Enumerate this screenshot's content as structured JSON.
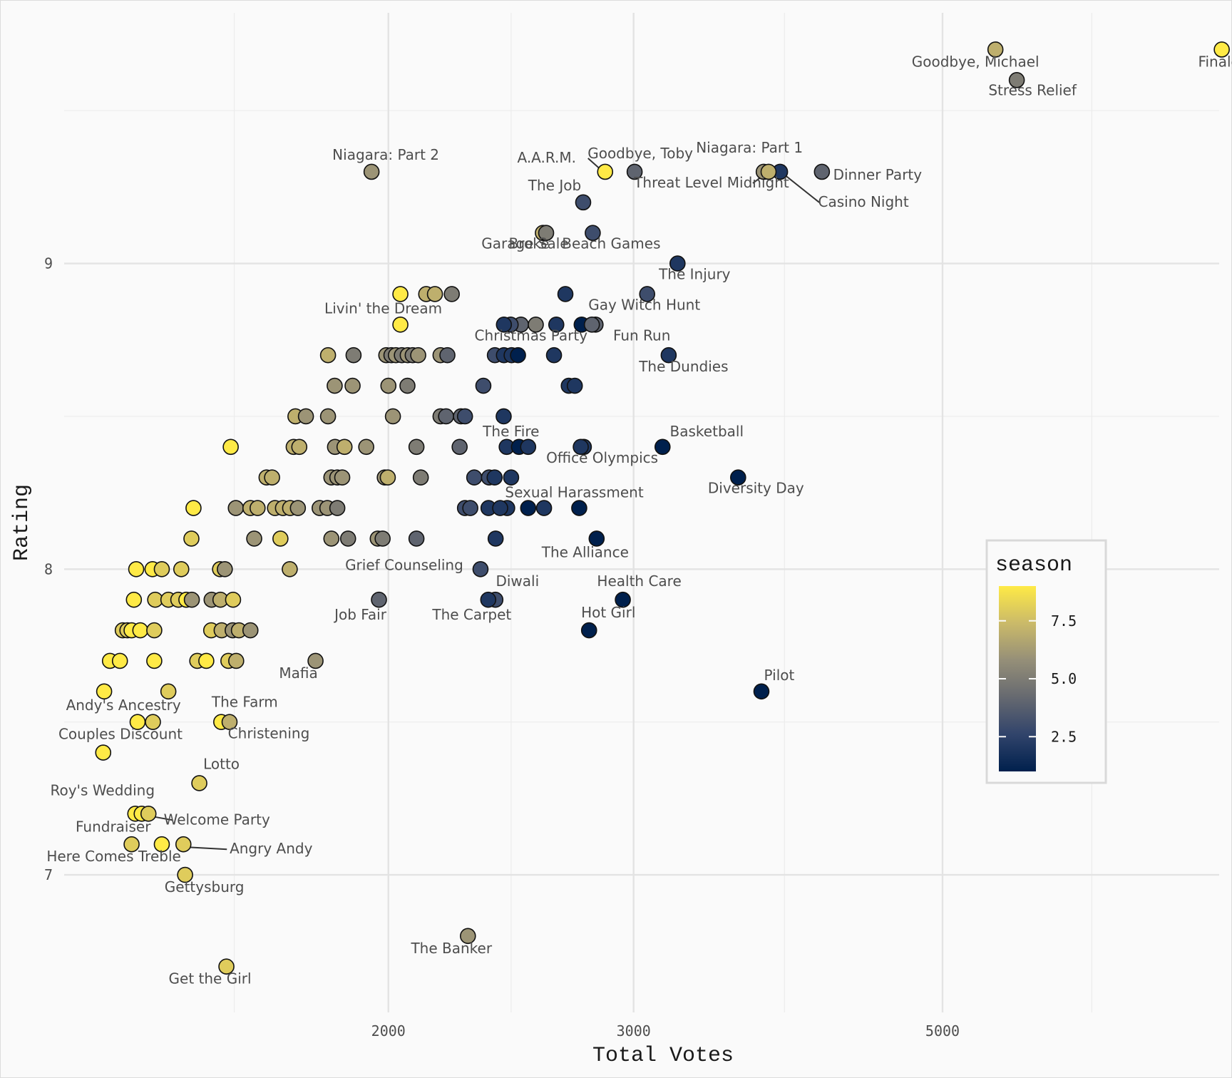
{
  "chart_data": {
    "type": "scatter",
    "title": "",
    "xlabel": "Total Votes",
    "ylabel": "Rating",
    "x_scale": "log",
    "xlim": [
      1170,
      7900
    ],
    "ylim": [
      6.55,
      9.82
    ],
    "x_ticks": [
      2000,
      3000,
      5000
    ],
    "x_tick_labels": [
      "2000",
      "3000",
      "5000"
    ],
    "y_ticks": [
      7,
      8,
      9
    ],
    "y_tick_labels": [
      "7",
      "8",
      "9"
    ],
    "grid": true,
    "legend": {
      "title": "season",
      "position": "right",
      "ticks": [
        2.5,
        5.0,
        7.5
      ],
      "tick_labels": [
        "2.5",
        "5.0",
        "7.5"
      ],
      "range": [
        1,
        9
      ]
    },
    "colors": {
      "low": "#00204d",
      "mid": "#7c7b78",
      "high": "#ffea46",
      "stops": [
        "#00204d",
        "#31446b",
        "#666970",
        "#958f78",
        "#cbba69",
        "#ffea46"
      ]
    },
    "labeled_points": [
      {
        "name": "Finale",
        "votes": 7934,
        "rating": 9.7,
        "season": 9
      },
      {
        "name": "Goodbye, Michael",
        "votes": 5457,
        "rating": 9.7,
        "season": 7
      },
      {
        "name": "Stress Relief",
        "votes": 5653,
        "rating": 9.6,
        "season": 5
      },
      {
        "name": "Dinner Party",
        "votes": 4096,
        "rating": 9.3,
        "season": 4
      },
      {
        "name": "Niagara: Part 1",
        "votes": 3720,
        "rating": 9.3,
        "season": 6
      },
      {
        "name": "Casino Night",
        "votes": 3822,
        "rating": 9.3,
        "season": 2
      },
      {
        "name": "Threat Level Midnight",
        "votes": 3750,
        "rating": 9.3,
        "season": 7
      },
      {
        "name": "Goodbye, Toby",
        "votes": 3005,
        "rating": 9.3,
        "season": 4
      },
      {
        "name": "A.A.R.M.",
        "votes": 2862,
        "rating": 9.3,
        "season": 9
      },
      {
        "name": "Niagara: Part 2",
        "votes": 1945,
        "rating": 9.3,
        "season": 6
      },
      {
        "name": "The Job",
        "votes": 2760,
        "rating": 9.2,
        "season": 3
      },
      {
        "name": "Garage Sale",
        "votes": 2582,
        "rating": 9.1,
        "season": 7
      },
      {
        "name": "Beach Games",
        "votes": 2804,
        "rating": 9.1,
        "season": 3
      },
      {
        "name": "Broke",
        "votes": 2596,
        "rating": 9.1,
        "season": 5
      },
      {
        "name": "The Injury",
        "votes": 3226,
        "rating": 9.0,
        "season": 2
      },
      {
        "name": "Gay Witch Hunt",
        "votes": 3068,
        "rating": 8.9,
        "season": 3
      },
      {
        "name": "Livin' the Dream",
        "votes": 2040,
        "rating": 8.8,
        "season": 9
      },
      {
        "name": "Christmas Party",
        "votes": 2421,
        "rating": 8.8,
        "season": 2
      },
      {
        "name": "Fun Run",
        "votes": 2800,
        "rating": 8.8,
        "season": 4
      },
      {
        "name": "The Dundies",
        "votes": 3179,
        "rating": 8.7,
        "season": 2
      },
      {
        "name": "Basketball",
        "votes": 3147,
        "rating": 8.4,
        "season": 1
      },
      {
        "name": "The Fire",
        "votes": 2520,
        "rating": 8.4,
        "season": 2
      },
      {
        "name": "Office Olympics",
        "votes": 2749,
        "rating": 8.4,
        "season": 2
      },
      {
        "name": "Diversity Day",
        "votes": 3566,
        "rating": 8.3,
        "season": 1
      },
      {
        "name": "Sexual Harassment",
        "votes": 2406,
        "rating": 8.2,
        "season": 2
      },
      {
        "name": "The Alliance",
        "votes": 2822,
        "rating": 8.1,
        "season": 1
      },
      {
        "name": "Grief Counseling",
        "votes": 2329,
        "rating": 8.0,
        "season": 3
      },
      {
        "name": "Diwali",
        "votes": 2387,
        "rating": 7.9,
        "season": 3
      },
      {
        "name": "Health Care",
        "votes": 2947,
        "rating": 7.9,
        "season": 1
      },
      {
        "name": "Job Fair",
        "votes": 1969,
        "rating": 7.9,
        "season": 4
      },
      {
        "name": "The Carpet",
        "votes": 2359,
        "rating": 7.9,
        "season": 2
      },
      {
        "name": "Hot Girl",
        "votes": 2787,
        "rating": 7.8,
        "season": 1
      },
      {
        "name": "Pilot",
        "votes": 3706,
        "rating": 7.6,
        "season": 1
      },
      {
        "name": "Mafia",
        "votes": 1773,
        "rating": 7.7,
        "season": 6
      },
      {
        "name": "Andy's Ancestry",
        "votes": 1390,
        "rating": 7.6,
        "season": 8
      },
      {
        "name": "The Farm",
        "votes": 1517,
        "rating": 7.5,
        "season": 9
      },
      {
        "name": "Christening",
        "votes": 1538,
        "rating": 7.5,
        "season": 7
      },
      {
        "name": "Couples Discount",
        "votes": 1321,
        "rating": 7.5,
        "season": 9
      },
      {
        "name": "Roy's Wedding",
        "votes": 1248,
        "rating": 7.4,
        "season": 9
      },
      {
        "name": "Lotto",
        "votes": 1463,
        "rating": 7.3,
        "season": 8
      },
      {
        "name": "Fundraiser",
        "votes": 1330,
        "rating": 7.2,
        "season": 9
      },
      {
        "name": "Welcome Party",
        "votes": 1345,
        "rating": 7.2,
        "season": 8
      },
      {
        "name": "Here Comes Treble",
        "votes": 1308,
        "rating": 7.1,
        "season": 8
      },
      {
        "name": "Angry Andy",
        "votes": 1425,
        "rating": 7.1,
        "season": 8
      },
      {
        "name": "Gettysburg",
        "votes": 1429,
        "rating": 7.0,
        "season": 8
      },
      {
        "name": "The Banker",
        "votes": 2281,
        "rating": 6.8,
        "season": 6
      },
      {
        "name": "Get the Girl",
        "votes": 1530,
        "rating": 6.7,
        "season": 8
      }
    ],
    "other_points": [
      {
        "votes": 2040,
        "rating": 8.9,
        "season": 9
      },
      {
        "votes": 2129,
        "rating": 8.9,
        "season": 7
      },
      {
        "votes": 2160,
        "rating": 8.9,
        "season": 7
      },
      {
        "votes": 2221,
        "rating": 8.9,
        "season": 5
      },
      {
        "votes": 2680,
        "rating": 8.9,
        "season": 2
      },
      {
        "votes": 2490,
        "rating": 8.8,
        "season": 4
      },
      {
        "votes": 2448,
        "rating": 8.8,
        "season": 3
      },
      {
        "votes": 2552,
        "rating": 8.8,
        "season": 5
      },
      {
        "votes": 2640,
        "rating": 8.8,
        "season": 2
      },
      {
        "votes": 2753,
        "rating": 8.8,
        "season": 1
      },
      {
        "votes": 2817,
        "rating": 8.8,
        "season": 4
      },
      {
        "votes": 1810,
        "rating": 8.7,
        "season": 7
      },
      {
        "votes": 1888,
        "rating": 8.7,
        "season": 5
      },
      {
        "votes": 1993,
        "rating": 8.7,
        "season": 6
      },
      {
        "votes": 2010,
        "rating": 8.7,
        "season": 5
      },
      {
        "votes": 2025,
        "rating": 8.7,
        "season": 6
      },
      {
        "votes": 2045,
        "rating": 8.7,
        "season": 5
      },
      {
        "votes": 2065,
        "rating": 8.7,
        "season": 6
      },
      {
        "votes": 2082,
        "rating": 8.7,
        "season": 5
      },
      {
        "votes": 2101,
        "rating": 8.7,
        "season": 6
      },
      {
        "votes": 2180,
        "rating": 8.7,
        "season": 6
      },
      {
        "votes": 2205,
        "rating": 8.7,
        "season": 4
      },
      {
        "votes": 2385,
        "rating": 8.7,
        "season": 3
      },
      {
        "votes": 2421,
        "rating": 8.7,
        "season": 2
      },
      {
        "votes": 2452,
        "rating": 8.7,
        "season": 2
      },
      {
        "votes": 2478,
        "rating": 8.7,
        "season": 1
      },
      {
        "votes": 2630,
        "rating": 8.7,
        "season": 2
      },
      {
        "votes": 1830,
        "rating": 8.6,
        "season": 6
      },
      {
        "votes": 1885,
        "rating": 8.6,
        "season": 6
      },
      {
        "votes": 2000,
        "rating": 8.6,
        "season": 6
      },
      {
        "votes": 2064,
        "rating": 8.6,
        "season": 5
      },
      {
        "votes": 2340,
        "rating": 8.6,
        "season": 3
      },
      {
        "votes": 2695,
        "rating": 8.6,
        "season": 2
      },
      {
        "votes": 2722,
        "rating": 8.6,
        "season": 2
      },
      {
        "votes": 1715,
        "rating": 8.5,
        "season": 7
      },
      {
        "votes": 1745,
        "rating": 8.5,
        "season": 6
      },
      {
        "votes": 1810,
        "rating": 8.5,
        "season": 6
      },
      {
        "votes": 2015,
        "rating": 8.5,
        "season": 6
      },
      {
        "votes": 2180,
        "rating": 8.5,
        "season": 5
      },
      {
        "votes": 2200,
        "rating": 8.5,
        "season": 4
      },
      {
        "votes": 2255,
        "rating": 8.5,
        "season": 4
      },
      {
        "votes": 2270,
        "rating": 8.5,
        "season": 3
      },
      {
        "votes": 2420,
        "rating": 8.5,
        "season": 2
      },
      {
        "votes": 1541,
        "rating": 8.4,
        "season": 9
      },
      {
        "votes": 1710,
        "rating": 8.4,
        "season": 7
      },
      {
        "votes": 1726,
        "rating": 8.4,
        "season": 7
      },
      {
        "votes": 1831,
        "rating": 8.4,
        "season": 6
      },
      {
        "votes": 1860,
        "rating": 8.4,
        "season": 7
      },
      {
        "votes": 1928,
        "rating": 8.4,
        "season": 6
      },
      {
        "votes": 2095,
        "rating": 8.4,
        "season": 5
      },
      {
        "votes": 2250,
        "rating": 8.4,
        "season": 4
      },
      {
        "votes": 2432,
        "rating": 8.4,
        "season": 2
      },
      {
        "votes": 2482,
        "rating": 8.4,
        "season": 1
      },
      {
        "votes": 2763,
        "rating": 8.4,
        "season": 2
      },
      {
        "votes": 1635,
        "rating": 8.3,
        "season": 7
      },
      {
        "votes": 1650,
        "rating": 8.3,
        "season": 7
      },
      {
        "votes": 1820,
        "rating": 8.3,
        "season": 6
      },
      {
        "votes": 1838,
        "rating": 8.3,
        "season": 6
      },
      {
        "votes": 1853,
        "rating": 8.3,
        "season": 6
      },
      {
        "votes": 1988,
        "rating": 8.3,
        "season": 6
      },
      {
        "votes": 1998,
        "rating": 8.3,
        "season": 7
      },
      {
        "votes": 2110,
        "rating": 8.3,
        "season": 5
      },
      {
        "votes": 2305,
        "rating": 8.3,
        "season": 3
      },
      {
        "votes": 2362,
        "rating": 8.3,
        "season": 3
      },
      {
        "votes": 2384,
        "rating": 8.3,
        "season": 2
      },
      {
        "votes": 2450,
        "rating": 8.3,
        "season": 2
      },
      {
        "votes": 1449,
        "rating": 8.2,
        "season": 9
      },
      {
        "votes": 1554,
        "rating": 8.2,
        "season": 6
      },
      {
        "votes": 1592,
        "rating": 8.2,
        "season": 7
      },
      {
        "votes": 1611,
        "rating": 8.2,
        "season": 7
      },
      {
        "votes": 1658,
        "rating": 8.2,
        "season": 7
      },
      {
        "votes": 1680,
        "rating": 8.2,
        "season": 7
      },
      {
        "votes": 1700,
        "rating": 8.2,
        "season": 7
      },
      {
        "votes": 1722,
        "rating": 8.2,
        "season": 6
      },
      {
        "votes": 1785,
        "rating": 8.2,
        "season": 6
      },
      {
        "votes": 1808,
        "rating": 8.2,
        "season": 6
      },
      {
        "votes": 1838,
        "rating": 8.2,
        "season": 5
      },
      {
        "votes": 2270,
        "rating": 8.2,
        "season": 3
      },
      {
        "votes": 2290,
        "rating": 8.2,
        "season": 3
      },
      {
        "votes": 2360,
        "rating": 8.2,
        "season": 2
      },
      {
        "votes": 2434,
        "rating": 8.2,
        "season": 2
      },
      {
        "votes": 2520,
        "rating": 8.2,
        "season": 1
      },
      {
        "votes": 2587,
        "rating": 8.2,
        "season": 2
      },
      {
        "votes": 2742,
        "rating": 8.2,
        "season": 1
      },
      {
        "votes": 1444,
        "rating": 8.1,
        "season": 8
      },
      {
        "votes": 1602,
        "rating": 8.1,
        "season": 6
      },
      {
        "votes": 1673,
        "rating": 8.1,
        "season": 8
      },
      {
        "votes": 1820,
        "rating": 8.1,
        "season": 6
      },
      {
        "votes": 1871,
        "rating": 8.1,
        "season": 5
      },
      {
        "votes": 1965,
        "rating": 8.1,
        "season": 6
      },
      {
        "votes": 1981,
        "rating": 8.1,
        "season": 5
      },
      {
        "votes": 2095,
        "rating": 8.1,
        "season": 4
      },
      {
        "votes": 2388,
        "rating": 8.1,
        "season": 2
      },
      {
        "votes": 1318,
        "rating": 8.0,
        "season": 9
      },
      {
        "votes": 1354,
        "rating": 8.0,
        "season": 9
      },
      {
        "votes": 1375,
        "rating": 8.0,
        "season": 8
      },
      {
        "votes": 1420,
        "rating": 8.0,
        "season": 8
      },
      {
        "votes": 1514,
        "rating": 8.0,
        "season": 8
      },
      {
        "votes": 1526,
        "rating": 8.0,
        "season": 6
      },
      {
        "votes": 1699,
        "rating": 8.0,
        "season": 7
      },
      {
        "votes": 1313,
        "rating": 7.9,
        "season": 9
      },
      {
        "votes": 1360,
        "rating": 7.9,
        "season": 8
      },
      {
        "votes": 1390,
        "rating": 7.9,
        "season": 8
      },
      {
        "votes": 1413,
        "rating": 7.9,
        "season": 8
      },
      {
        "votes": 1432,
        "rating": 7.9,
        "season": 9
      },
      {
        "votes": 1445,
        "rating": 7.9,
        "season": 6
      },
      {
        "votes": 1493,
        "rating": 7.9,
        "season": 6
      },
      {
        "votes": 1515,
        "rating": 7.9,
        "season": 7
      },
      {
        "votes": 1547,
        "rating": 7.9,
        "season": 8
      },
      {
        "votes": 1289,
        "rating": 7.8,
        "season": 8
      },
      {
        "votes": 1299,
        "rating": 7.8,
        "season": 8
      },
      {
        "votes": 1308,
        "rating": 7.8,
        "season": 9
      },
      {
        "votes": 1327,
        "rating": 7.8,
        "season": 9
      },
      {
        "votes": 1358,
        "rating": 7.8,
        "season": 8
      },
      {
        "votes": 1492,
        "rating": 7.8,
        "season": 8
      },
      {
        "votes": 1518,
        "rating": 7.8,
        "season": 7
      },
      {
        "votes": 1546,
        "rating": 7.8,
        "season": 6
      },
      {
        "votes": 1562,
        "rating": 7.8,
        "season": 7
      },
      {
        "votes": 1592,
        "rating": 7.8,
        "season": 6
      },
      {
        "votes": 1262,
        "rating": 7.7,
        "season": 9
      },
      {
        "votes": 1283,
        "rating": 7.7,
        "season": 9
      },
      {
        "votes": 1358,
        "rating": 7.7,
        "season": 9
      },
      {
        "votes": 1458,
        "rating": 7.7,
        "season": 8
      },
      {
        "votes": 1480,
        "rating": 7.7,
        "season": 9
      },
      {
        "votes": 1535,
        "rating": 7.7,
        "season": 8
      },
      {
        "votes": 1555,
        "rating": 7.7,
        "season": 7
      },
      {
        "votes": 1250,
        "rating": 7.6,
        "season": 9
      },
      {
        "votes": 1355,
        "rating": 7.5,
        "season": 8
      },
      {
        "votes": 1316,
        "rating": 7.2,
        "season": 9
      },
      {
        "votes": 1375,
        "rating": 7.1,
        "season": 9
      }
    ]
  }
}
